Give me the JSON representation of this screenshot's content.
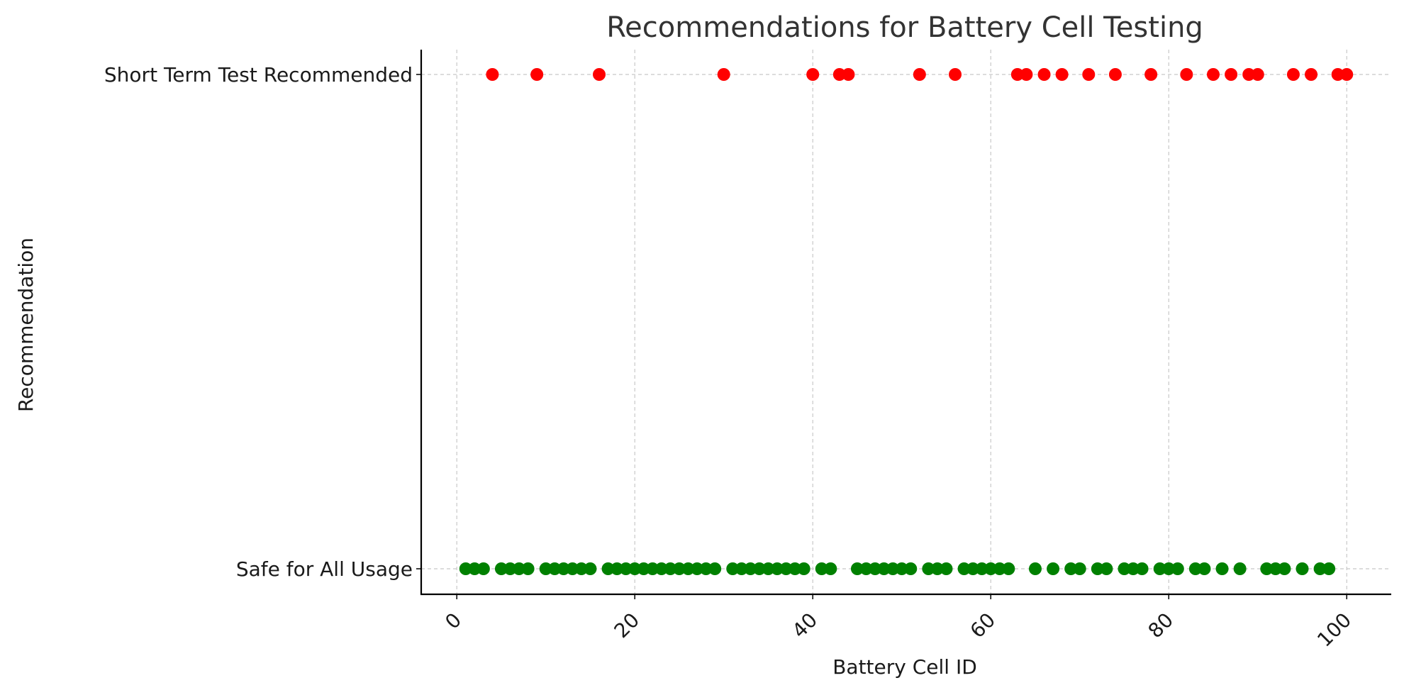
{
  "chart_data": {
    "type": "scatter",
    "title": "Recommendations for Battery Cell Testing",
    "xlabel": "Battery Cell ID",
    "ylabel": "Recommendation",
    "xlim": [
      -4,
      105
    ],
    "x_ticks": [
      0,
      20,
      40,
      60,
      80,
      100
    ],
    "x_tick_rotation": 45,
    "categories": [
      "Safe for All Usage",
      "Short Term Test Recommended"
    ],
    "grid": true,
    "legend": false,
    "series": [
      {
        "category": "Short Term Test Recommended",
        "color": "#ff0000",
        "x": [
          4,
          9,
          16,
          30,
          40,
          43,
          44,
          52,
          56,
          63,
          64,
          66,
          68,
          71,
          74,
          78,
          82,
          85,
          87,
          89,
          90,
          94,
          96,
          99,
          100
        ]
      },
      {
        "category": "Safe for All Usage",
        "color": "#008000",
        "x": [
          1,
          2,
          3,
          5,
          6,
          7,
          8,
          10,
          11,
          12,
          13,
          14,
          15,
          17,
          18,
          19,
          20,
          21,
          22,
          23,
          24,
          25,
          26,
          27,
          28,
          29,
          31,
          32,
          33,
          34,
          35,
          36,
          37,
          38,
          39,
          41,
          42,
          45,
          46,
          47,
          48,
          49,
          50,
          51,
          53,
          54,
          55,
          57,
          58,
          59,
          60,
          61,
          62,
          65,
          67,
          69,
          70,
          72,
          73,
          75,
          76,
          77,
          79,
          80,
          81,
          83,
          84,
          86,
          88,
          91,
          92,
          93,
          95,
          97,
          98
        ]
      }
    ]
  }
}
